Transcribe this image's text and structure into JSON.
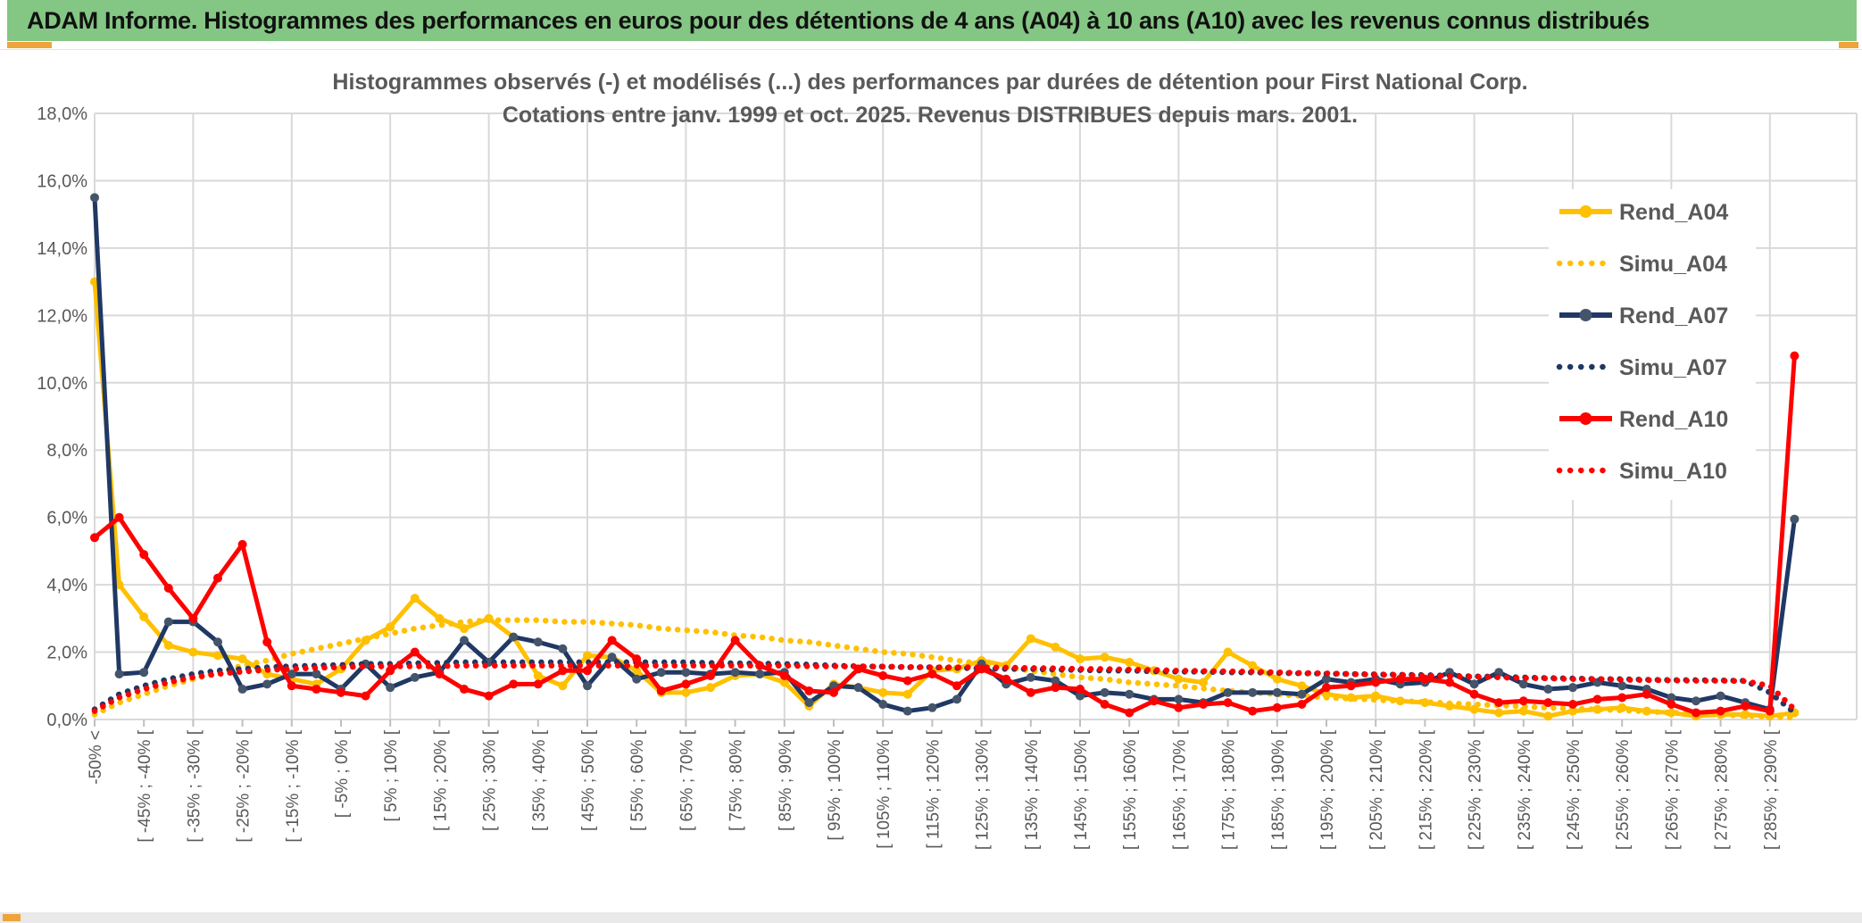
{
  "header": {
    "title": "ADAM Informe. Histogrammes des performances en euros pour des détentions de 4 ans (A04) à 10 ans (A10) avec les revenus connus distribués"
  },
  "colors": {
    "header_green": "#84C684",
    "accent_orange": "#ECA43B",
    "grid": "#D9D9D9",
    "tick": "#BFBFBF",
    "text_grey": "#595959",
    "gold": "#FFC000",
    "navy": "#1F3864",
    "navy_marker": "#44546A",
    "red": "#FF0000"
  },
  "chart_data": {
    "type": "line",
    "title_lines": [
      "Histogrammes observés (-) et modélisés (...) des performances par durées de détention pour First National Corp.",
      "Cotations entre janv. 1999 et oct. 2025. Revenus DISTRIBUES depuis mars. 2001."
    ],
    "ylabel": "",
    "xlabel": "",
    "ylim": [
      0,
      18
    ],
    "y_tick_step": 2,
    "y_tick_labels": [
      "0,0%",
      "2,0%",
      "4,0%",
      "6,0%",
      "8,0%",
      "10,0%",
      "12,0%",
      "14,0%",
      "16,0%",
      "18,0%"
    ],
    "grid": true,
    "legend_position": "right-inside",
    "bins_total": 70,
    "x_tick_every": 2,
    "x_tick_labels": [
      "-50% <",
      "[ -45% ; -40% [",
      "[ -35% ; -30% [",
      "[ -25% ; -20% [",
      "[ -15% ; -10% [",
      "[ -5% ; 0% [",
      "[ 5% ; 10% [",
      "[ 15% ; 20% [",
      "[ 25% ; 30% [",
      "[ 35% ; 40% [",
      "[ 45% ; 50% [",
      "[ 55% ; 60% [",
      "[ 65% ; 70% [",
      "[ 75% ; 80% [",
      "[ 85% ; 90% [",
      "[ 95% ; 100% [",
      "[ 105% ; 110% [",
      "[ 115% ; 120% [",
      "[ 125% ; 130% [",
      "[ 135% ; 140% [",
      "[ 145% ; 150% [",
      "[ 155% ; 160% [",
      "[ 165% ; 170% [",
      "[ 175% ; 180% [",
      "[ 185% ; 190% [",
      "[ 195% ; 200% [",
      "[ 205% ; 210% [",
      "[ 215% ; 220% [",
      "[ 225% ; 230% [",
      "[ 235% ; 240% [",
      "[ 245% ; 250% [",
      "[ 255% ; 260% [",
      "[ 265% ; 270% [",
      "[ 275% ; 280% [",
      "[ 285% ; 290% ["
    ],
    "series": [
      {
        "name": "Rend_A04",
        "style": "solid",
        "color": "#FFC000",
        "marker": "#FFC000",
        "values": [
          13.0,
          4.0,
          3.05,
          2.2,
          2.0,
          1.9,
          1.8,
          1.35,
          1.2,
          1.05,
          1.5,
          2.35,
          2.75,
          3.6,
          3.0,
          2.7,
          3.0,
          2.45,
          1.3,
          1.0,
          1.9,
          1.85,
          1.45,
          0.8,
          0.8,
          0.95,
          1.3,
          1.35,
          1.1,
          0.4,
          1.05,
          0.95,
          0.8,
          0.75,
          1.45,
          1.5,
          1.75,
          1.6,
          2.4,
          2.15,
          1.8,
          1.85,
          1.7,
          1.45,
          1.2,
          1.1,
          2.0,
          1.6,
          1.2,
          1.0,
          0.75,
          0.65,
          0.7,
          0.55,
          0.5,
          0.4,
          0.3,
          0.2,
          0.25,
          0.1,
          0.25,
          0.3,
          0.35,
          0.25,
          0.2,
          0.1,
          0.15,
          0.15,
          0.1,
          0.2
        ]
      },
      {
        "name": "Simu_A04",
        "style": "dotted",
        "color": "#FFC000",
        "marker": "#FFC000",
        "values": [
          0.15,
          0.5,
          0.75,
          1.0,
          1.2,
          1.4,
          1.6,
          1.75,
          1.95,
          2.1,
          2.25,
          2.4,
          2.55,
          2.7,
          2.8,
          2.9,
          2.95,
          2.95,
          2.95,
          2.9,
          2.9,
          2.85,
          2.8,
          2.7,
          2.65,
          2.6,
          2.5,
          2.45,
          2.35,
          2.3,
          2.2,
          2.1,
          2.0,
          1.95,
          1.85,
          1.75,
          1.65,
          1.55,
          1.45,
          1.35,
          1.25,
          1.2,
          1.1,
          1.05,
          1.0,
          0.92,
          0.85,
          0.8,
          0.75,
          0.7,
          0.65,
          0.62,
          0.58,
          0.55,
          0.52,
          0.48,
          0.45,
          0.42,
          0.38,
          0.35,
          0.32,
          0.3,
          0.27,
          0.24,
          0.2,
          0.17,
          0.14,
          0.11,
          0.08,
          0.05
        ]
      },
      {
        "name": "Rend_A07",
        "style": "solid",
        "color": "#1F3864",
        "marker": "#44546A",
        "values": [
          15.5,
          1.35,
          1.4,
          2.9,
          2.9,
          2.3,
          0.9,
          1.05,
          1.35,
          1.35,
          0.9,
          1.65,
          0.95,
          1.25,
          1.4,
          2.35,
          1.7,
          2.45,
          2.3,
          2.1,
          1.0,
          1.85,
          1.2,
          1.4,
          1.4,
          1.35,
          1.4,
          1.35,
          1.4,
          0.5,
          1.0,
          0.95,
          0.45,
          0.25,
          0.35,
          0.6,
          1.65,
          1.05,
          1.25,
          1.15,
          0.7,
          0.8,
          0.75,
          0.6,
          0.6,
          0.5,
          0.8,
          0.8,
          0.8,
          0.75,
          1.2,
          1.1,
          1.2,
          1.05,
          1.1,
          1.4,
          1.05,
          1.4,
          1.05,
          0.9,
          0.95,
          1.1,
          1.0,
          0.9,
          0.65,
          0.55,
          0.7,
          0.5,
          0.3,
          5.95
        ]
      },
      {
        "name": "Simu_A07",
        "style": "dotted",
        "color": "#1F3864",
        "marker": "#1F3864",
        "values": [
          0.3,
          0.75,
          1.0,
          1.2,
          1.35,
          1.45,
          1.5,
          1.55,
          1.58,
          1.6,
          1.62,
          1.65,
          1.65,
          1.67,
          1.68,
          1.7,
          1.7,
          1.7,
          1.7,
          1.7,
          1.7,
          1.7,
          1.7,
          1.7,
          1.7,
          1.68,
          1.67,
          1.66,
          1.65,
          1.63,
          1.6,
          1.58,
          1.57,
          1.55,
          1.55,
          1.53,
          1.52,
          1.5,
          1.5,
          1.48,
          1.47,
          1.45,
          1.45,
          1.43,
          1.42,
          1.42,
          1.4,
          1.4,
          1.38,
          1.37,
          1.36,
          1.35,
          1.34,
          1.33,
          1.32,
          1.3,
          1.28,
          1.27,
          1.25,
          1.23,
          1.22,
          1.2,
          1.2,
          1.18,
          1.17,
          1.17,
          1.16,
          1.15,
          0.8,
          0.2
        ]
      },
      {
        "name": "Rend_A10",
        "style": "solid",
        "color": "#FF0000",
        "marker": "#FF0000",
        "values": [
          5.4,
          6.0,
          4.9,
          3.9,
          3.0,
          4.2,
          5.2,
          2.3,
          1.0,
          0.9,
          0.8,
          0.7,
          1.45,
          2.0,
          1.35,
          0.9,
          0.7,
          1.05,
          1.05,
          1.45,
          1.45,
          2.35,
          1.8,
          0.85,
          1.05,
          1.3,
          2.35,
          1.6,
          1.3,
          0.85,
          0.8,
          1.5,
          1.3,
          1.15,
          1.35,
          1.0,
          1.5,
          1.2,
          0.8,
          0.95,
          0.9,
          0.45,
          0.2,
          0.55,
          0.35,
          0.45,
          0.5,
          0.25,
          0.35,
          0.45,
          0.95,
          1.0,
          1.1,
          1.2,
          1.2,
          1.1,
          0.75,
          0.5,
          0.55,
          0.5,
          0.45,
          0.6,
          0.65,
          0.75,
          0.45,
          0.2,
          0.25,
          0.4,
          0.25,
          10.8
        ]
      },
      {
        "name": "Simu_A10",
        "style": "dotted",
        "color": "#FF0000",
        "marker": "#FF0000",
        "values": [
          0.25,
          0.65,
          0.9,
          1.1,
          1.25,
          1.35,
          1.42,
          1.47,
          1.5,
          1.53,
          1.55,
          1.57,
          1.58,
          1.58,
          1.58,
          1.6,
          1.6,
          1.6,
          1.6,
          1.6,
          1.6,
          1.6,
          1.6,
          1.6,
          1.6,
          1.6,
          1.6,
          1.6,
          1.6,
          1.58,
          1.58,
          1.57,
          1.57,
          1.56,
          1.55,
          1.55,
          1.55,
          1.54,
          1.53,
          1.52,
          1.5,
          1.5,
          1.48,
          1.47,
          1.45,
          1.44,
          1.43,
          1.42,
          1.4,
          1.38,
          1.37,
          1.35,
          1.33,
          1.32,
          1.3,
          1.28,
          1.27,
          1.25,
          1.23,
          1.22,
          1.2,
          1.2,
          1.18,
          1.17,
          1.16,
          1.15,
          1.15,
          1.14,
          1.0,
          0.3
        ]
      }
    ],
    "legend_entries": [
      "Rend_A04",
      "Simu_A04",
      "Rend_A07",
      "Simu_A07",
      "Rend_A10",
      "Simu_A10"
    ]
  }
}
